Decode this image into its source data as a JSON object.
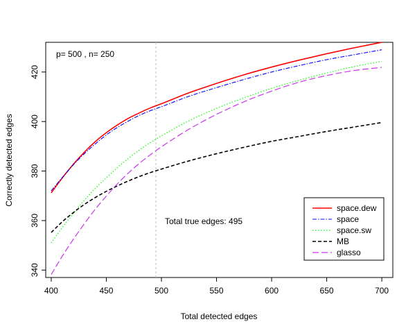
{
  "chart_data": {
    "type": "line",
    "xlabel": "Total detected edges",
    "ylabel": "Correctly detected edges",
    "xlim": [
      395,
      710
    ],
    "ylim": [
      337,
      432
    ],
    "x_ticks": [
      400,
      450,
      500,
      550,
      600,
      650,
      700
    ],
    "y_ticks": [
      340,
      360,
      380,
      400,
      420
    ],
    "grid": false,
    "legend_position": "bottom-right",
    "annotations": {
      "params": "p= 500 , n= 250",
      "true_edges_label": "Total true edges: 495",
      "true_edges_x": 495
    },
    "x": [
      400,
      410,
      420,
      430,
      440,
      450,
      460,
      470,
      480,
      490,
      500,
      525,
      550,
      575,
      600,
      625,
      650,
      675,
      700
    ],
    "series": [
      {
        "name": "space.dew",
        "color": "#ff0000",
        "dash": "",
        "width": 1.6,
        "values": [
          371.2,
          377.2,
          382.7,
          387.6,
          391.9,
          395.5,
          398.6,
          401.3,
          403.5,
          405.5,
          407.2,
          411.6,
          415.4,
          418.9,
          422.0,
          424.8,
          427.4,
          429.8,
          432.0
        ]
      },
      {
        "name": "space",
        "color": "#0000ff",
        "dash": "6 2 1.5 2",
        "width": 1.1,
        "values": [
          372.0,
          377.4,
          382.5,
          387.0,
          391.0,
          394.6,
          397.6,
          400.2,
          402.5,
          404.4,
          406.0,
          410.2,
          413.7,
          417.0,
          420.0,
          422.6,
          425.0,
          427.0,
          429.0
        ]
      },
      {
        "name": "space.sw",
        "color": "#00ff00",
        "dash": "1.5 2.5",
        "width": 1.2,
        "values": [
          351.0,
          357.2,
          362.8,
          368.2,
          373.0,
          377.3,
          381.4,
          385.1,
          388.5,
          391.5,
          394.2,
          400.3,
          405.3,
          409.6,
          413.4,
          416.7,
          419.6,
          422.2,
          424.3
        ]
      },
      {
        "name": "MB",
        "color": "#000000",
        "dash": "5 3",
        "width": 1.6,
        "values": [
          355.2,
          359.5,
          363.2,
          366.5,
          369.3,
          371.8,
          374.0,
          376.0,
          377.8,
          379.4,
          380.8,
          384.1,
          387.0,
          389.6,
          392.0,
          394.0,
          396.0,
          397.8,
          399.6
        ]
      },
      {
        "name": "glasso",
        "color": "#cc33ee",
        "dash": "9 4",
        "width": 1.2,
        "values": [
          338.2,
          345.6,
          352.4,
          358.7,
          364.6,
          369.9,
          374.8,
          379.2,
          383.1,
          386.6,
          389.8,
          396.9,
          402.9,
          408.0,
          412.3,
          415.9,
          418.6,
          420.6,
          421.9
        ]
      }
    ]
  }
}
